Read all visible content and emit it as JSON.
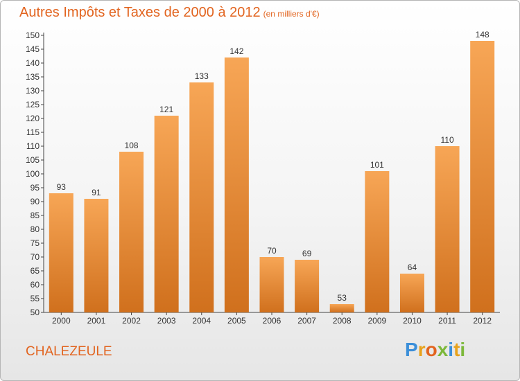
{
  "title": {
    "main": "Autres Impôts et Taxes de 2000 à 2012",
    "unit": "(en milliers d'€)"
  },
  "commune": "CHALEZEULE",
  "logo": {
    "letters": [
      "P",
      "r",
      "o",
      "x",
      "i",
      "t",
      "i"
    ],
    "colors": [
      "#3b8fd9",
      "#e8a21c",
      "#e2641f",
      "#7cb83a",
      "#3b8fd9",
      "#e8a21c",
      "#7cb83a"
    ]
  },
  "colors": {
    "bar_top": "#f7a656",
    "bar_bottom": "#d0701d",
    "accent": "#e2641f"
  },
  "chart_data": {
    "type": "bar",
    "categories": [
      "2000",
      "2001",
      "2002",
      "2003",
      "2004",
      "2005",
      "2006",
      "2007",
      "2008",
      "2009",
      "2010",
      "2011",
      "2012"
    ],
    "values": [
      93,
      91,
      108,
      121,
      133,
      142,
      70,
      69,
      53,
      101,
      64,
      110,
      148
    ],
    "ylim": [
      50,
      150
    ],
    "yticks": [
      50,
      55,
      60,
      65,
      70,
      75,
      80,
      85,
      90,
      95,
      100,
      105,
      110,
      115,
      120,
      125,
      130,
      135,
      140,
      145,
      150
    ],
    "grid": false,
    "legend": "none"
  }
}
